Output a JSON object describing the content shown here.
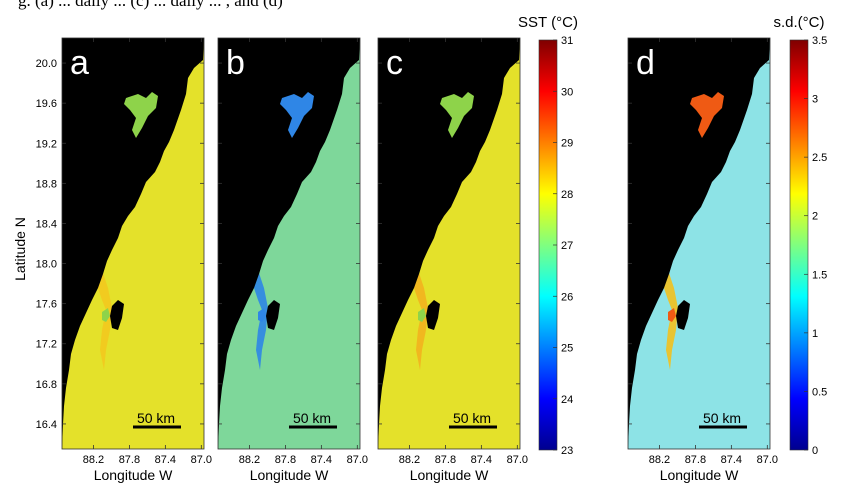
{
  "figure": {
    "caption_fragment": "g. (a) ... daily ... (c) ... daily ... , and (d)",
    "ylabel": "Latitude N",
    "xlabel": "Longitude W",
    "lat_ticks": [
      "20.0",
      "19.6",
      "19.2",
      "18.8",
      "18.4",
      "18.0",
      "17.6",
      "17.2",
      "16.8",
      "16.4"
    ],
    "lon_ticks": [
      "88.2",
      "87.8",
      "87.4",
      "87.0"
    ],
    "scale_label": "50 km",
    "panels": [
      {
        "letter": "a",
        "field": "sst",
        "land_color": "#000000",
        "water_color": "#e4e12a",
        "coast_color": "#f2c91e",
        "island_color": "#8ed34a"
      },
      {
        "letter": "b",
        "field": "sst",
        "land_color": "#000000",
        "water_color": "#7ed79a",
        "coast_color": "#2f86e6",
        "island_color": "#2f86e6"
      },
      {
        "letter": "c",
        "field": "sst",
        "land_color": "#000000",
        "water_color": "#e4e12a",
        "coast_color": "#f2b21e",
        "island_color": "#8ed34a"
      },
      {
        "letter": "d",
        "field": "sd",
        "land_color": "#000000",
        "water_color": "#8de3e6",
        "coast_color": "#f2c01e",
        "island_color": "#ef5a14"
      }
    ],
    "colorbars": [
      {
        "title": "SST (°C)",
        "min": 23,
        "max": 31,
        "ticks": [
          "31",
          "30",
          "29",
          "28",
          "27",
          "26",
          "25",
          "24",
          "23"
        ]
      },
      {
        "title": "s.d.(°C)",
        "min": 0,
        "max": 3.5,
        "ticks": [
          "3.5",
          "3",
          "2.5",
          "2",
          "1.5",
          "1",
          "0.5",
          "0"
        ]
      }
    ]
  }
}
